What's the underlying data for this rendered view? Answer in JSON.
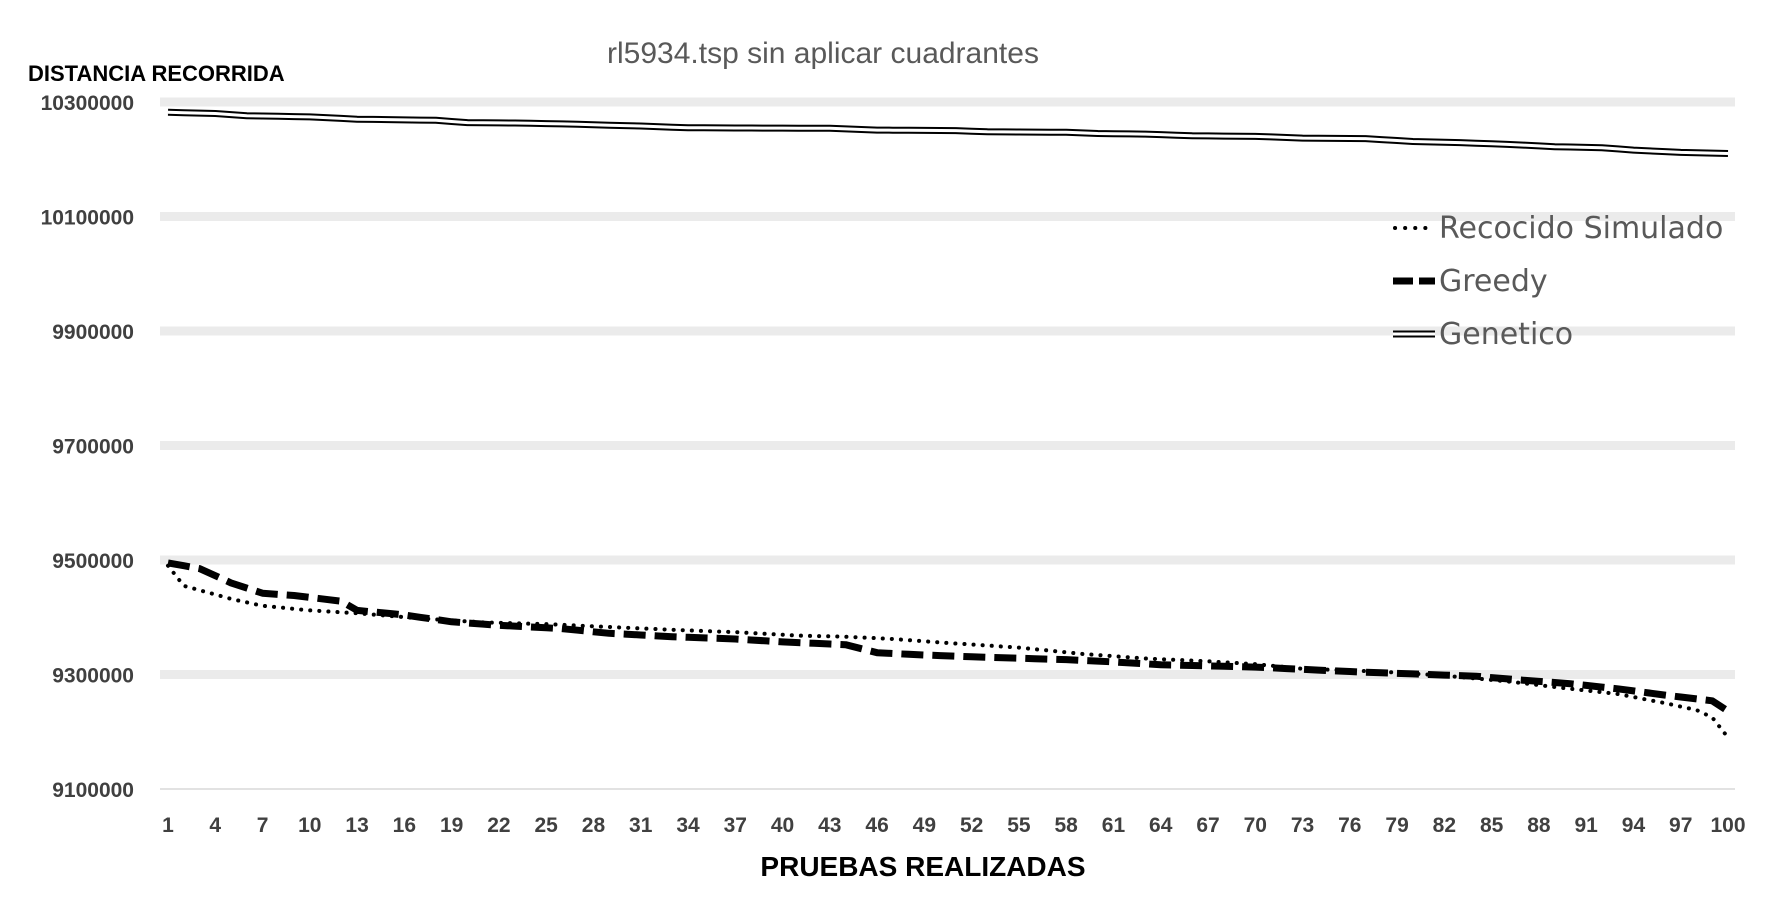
{
  "chart_data": {
    "type": "line",
    "title": "rl5934.tsp sin aplicar cuadrantes",
    "ylabel": "DISTANCIA RECORRIDA",
    "xlabel": "PRUEBAS REALIZADAS",
    "ylim": [
      9100000,
      10300000
    ],
    "yticks": [
      "9100000",
      "9300000",
      "9500000",
      "9700000",
      "9900000",
      "10100000",
      "10300000"
    ],
    "x_count": 100,
    "xticks": [
      1,
      4,
      7,
      10,
      13,
      16,
      19,
      22,
      25,
      28,
      31,
      34,
      37,
      40,
      43,
      46,
      49,
      52,
      55,
      58,
      61,
      64,
      67,
      70,
      73,
      76,
      79,
      82,
      85,
      88,
      91,
      94,
      97,
      100
    ],
    "grid": "horizontal",
    "legend_position": "right",
    "series": [
      {
        "name": "Recocido Simulado",
        "style": "dotted",
        "color": "#000000",
        "keypoints": [
          [
            1,
            9490000
          ],
          [
            2,
            9455000
          ],
          [
            5,
            9432000
          ],
          [
            7,
            9420000
          ],
          [
            10,
            9412000
          ],
          [
            13,
            9407000
          ],
          [
            17,
            9398000
          ],
          [
            21,
            9391000
          ],
          [
            25,
            9388000
          ],
          [
            29,
            9383000
          ],
          [
            33,
            9378000
          ],
          [
            37,
            9374000
          ],
          [
            41,
            9368000
          ],
          [
            44,
            9366000
          ],
          [
            47,
            9362000
          ],
          [
            50,
            9356000
          ],
          [
            55,
            9347000
          ],
          [
            59,
            9336000
          ],
          [
            63,
            9328000
          ],
          [
            67,
            9323000
          ],
          [
            70,
            9318000
          ],
          [
            73,
            9310000
          ],
          [
            78,
            9305000
          ],
          [
            82,
            9298000
          ],
          [
            86,
            9288000
          ],
          [
            90,
            9275000
          ],
          [
            93,
            9266000
          ],
          [
            96,
            9250000
          ],
          [
            98,
            9238000
          ],
          [
            99,
            9225000
          ],
          [
            100,
            9190000
          ]
        ]
      },
      {
        "name": "Greedy",
        "style": "dashed",
        "color": "#000000",
        "keypoints": [
          [
            1,
            9495000
          ],
          [
            3,
            9485000
          ],
          [
            5,
            9460000
          ],
          [
            7,
            9442000
          ],
          [
            9,
            9438000
          ],
          [
            12,
            9428000
          ],
          [
            13,
            9412000
          ],
          [
            16,
            9404000
          ],
          [
            19,
            9392000
          ],
          [
            22,
            9386000
          ],
          [
            26,
            9380000
          ],
          [
            29,
            9372000
          ],
          [
            33,
            9366000
          ],
          [
            37,
            9362000
          ],
          [
            40,
            9357000
          ],
          [
            44,
            9352000
          ],
          [
            46,
            9338000
          ],
          [
            49,
            9334000
          ],
          [
            53,
            9330000
          ],
          [
            58,
            9326000
          ],
          [
            61,
            9322000
          ],
          [
            64,
            9317000
          ],
          [
            67,
            9315000
          ],
          [
            70,
            9313000
          ],
          [
            73,
            9309000
          ],
          [
            77,
            9304000
          ],
          [
            81,
            9300000
          ],
          [
            84,
            9297000
          ],
          [
            87,
            9290000
          ],
          [
            90,
            9284000
          ],
          [
            93,
            9275000
          ],
          [
            96,
            9264000
          ],
          [
            99,
            9254000
          ],
          [
            100,
            9236000
          ]
        ]
      },
      {
        "name": "Genetico",
        "style": "double",
        "color": "#000000",
        "keypoints": [
          [
            1,
            10282000
          ],
          [
            4,
            10280000
          ],
          [
            6,
            10276000
          ],
          [
            10,
            10274000
          ],
          [
            13,
            10270000
          ],
          [
            18,
            10268000
          ],
          [
            20,
            10264000
          ],
          [
            24,
            10263000
          ],
          [
            27,
            10261000
          ],
          [
            31,
            10258000
          ],
          [
            34,
            10255000
          ],
          [
            43,
            10254000
          ],
          [
            46,
            10251000
          ],
          [
            51,
            10250000
          ],
          [
            53,
            10248000
          ],
          [
            58,
            10247000
          ],
          [
            60,
            10245000
          ],
          [
            63,
            10244000
          ],
          [
            66,
            10241000
          ],
          [
            70,
            10240000
          ],
          [
            73,
            10237000
          ],
          [
            77,
            10236000
          ],
          [
            80,
            10231000
          ],
          [
            83,
            10229000
          ],
          [
            86,
            10226000
          ],
          [
            89,
            10222000
          ],
          [
            92,
            10220000
          ],
          [
            94,
            10216000
          ],
          [
            97,
            10212000
          ],
          [
            100,
            10210000
          ]
        ]
      }
    ]
  }
}
